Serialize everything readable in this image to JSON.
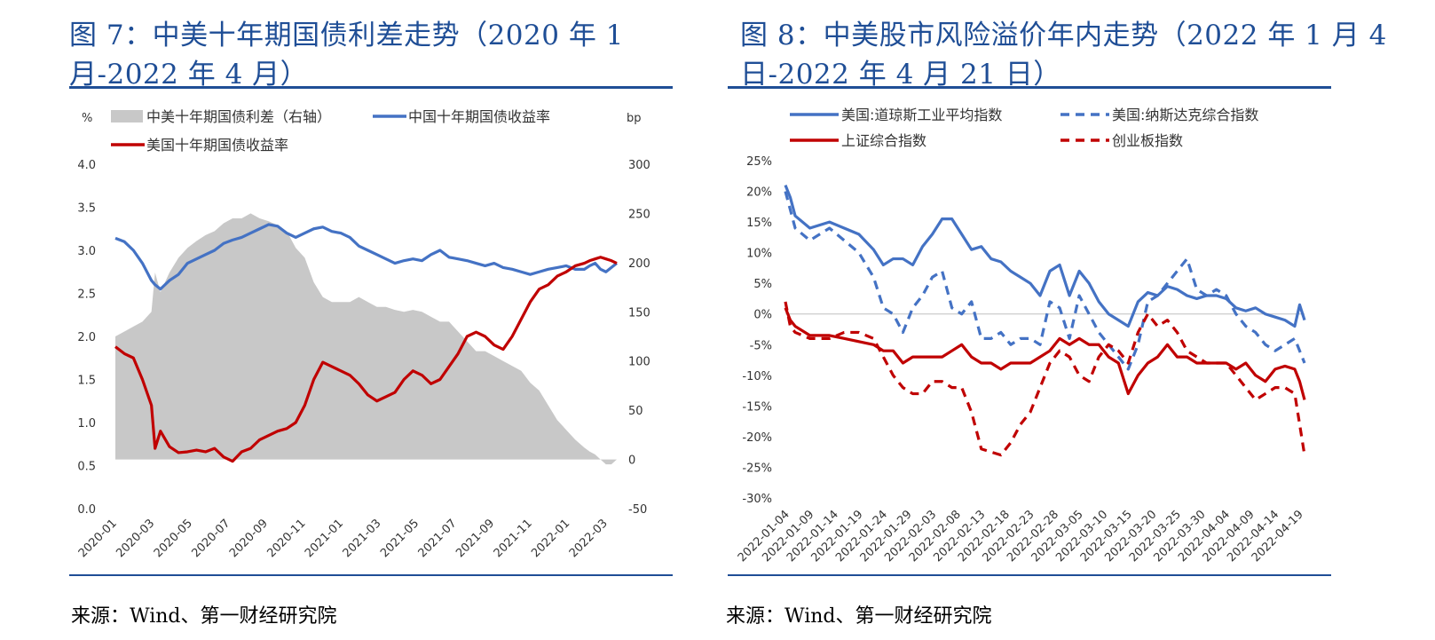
{
  "charts": [
    {
      "title": "图 7：中美十年期国债利差走势（2020 年 1 月-2022 年 4 月）",
      "source": "来源：Wind、第一财经研究院"
    },
    {
      "title": "图 8：中美股市风险溢价年内走势（2022 年 1 月 4 日-2022 年 4 月 21 日）",
      "source": "来源：Wind、第一财经研究院"
    }
  ],
  "chart_data": [
    {
      "type": "line",
      "title": "图 7：中美十年期国债利差走势（2020 年 1 月-2022 年 4 月）",
      "left_unit": "%",
      "right_unit": "bp",
      "ylim": [
        0.0,
        4.0
      ],
      "y2lim": [
        -50,
        300
      ],
      "y_ticks": [
        "4.0",
        "3.5",
        "3.0",
        "2.5",
        "2.0",
        "1.5",
        "1.0",
        "0.5",
        "0.0"
      ],
      "y2_ticks": [
        "300",
        "250",
        "200",
        "150",
        "100",
        "50",
        "0",
        "-50"
      ],
      "x_ticks": [
        "2020-01",
        "2020-03",
        "2020-05",
        "2020-07",
        "2020-09",
        "2020-11",
        "2021-01",
        "2021-03",
        "2021-05",
        "2021-07",
        "2021-09",
        "2021-11",
        "2022-01",
        "2022-03"
      ],
      "legend": [
        "中美十年期国债利差（右轴）",
        "中国十年期国债收益率",
        "美国十年期国债收益率"
      ],
      "x": [
        0,
        0.5,
        1,
        1.5,
        2,
        2.2,
        2.5,
        3,
        3.5,
        4,
        4.5,
        5,
        5.5,
        6,
        6.5,
        7,
        7.5,
        8,
        8.5,
        9,
        9.5,
        10,
        10.5,
        11,
        11.5,
        12,
        12.5,
        13,
        13.5,
        14,
        14.5,
        15,
        15.5,
        16,
        16.5,
        17,
        17.5,
        18,
        18.5,
        19,
        19.5,
        20,
        20.5,
        21,
        21.5,
        22,
        22.5,
        23,
        23.5,
        24,
        24.5,
        25,
        25.5,
        26,
        26.3,
        26.6,
        26.9,
        27.2,
        27.5,
        27.8
      ],
      "series": [
        {
          "name": "中国十年期国债收益率",
          "axis": "left",
          "color": "#4472c4",
          "values": [
            3.14,
            3.1,
            3.0,
            2.85,
            2.65,
            2.6,
            2.55,
            2.65,
            2.72,
            2.85,
            2.9,
            2.95,
            3.0,
            3.08,
            3.12,
            3.15,
            3.2,
            3.25,
            3.3,
            3.28,
            3.2,
            3.15,
            3.2,
            3.25,
            3.27,
            3.22,
            3.2,
            3.15,
            3.05,
            3.0,
            2.95,
            2.9,
            2.85,
            2.88,
            2.9,
            2.88,
            2.95,
            3.0,
            2.92,
            2.9,
            2.88,
            2.85,
            2.82,
            2.85,
            2.8,
            2.78,
            2.75,
            2.72,
            2.75,
            2.78,
            2.8,
            2.82,
            2.78,
            2.78,
            2.82,
            2.85,
            2.78,
            2.75,
            2.8,
            2.85
          ]
        },
        {
          "name": "美国十年期国债收益率",
          "axis": "left",
          "color": "#c00000",
          "values": [
            1.88,
            1.8,
            1.75,
            1.5,
            1.2,
            0.7,
            0.9,
            0.72,
            0.65,
            0.66,
            0.68,
            0.66,
            0.7,
            0.6,
            0.55,
            0.66,
            0.7,
            0.8,
            0.85,
            0.9,
            0.93,
            1.0,
            1.2,
            1.5,
            1.7,
            1.65,
            1.6,
            1.55,
            1.45,
            1.32,
            1.25,
            1.3,
            1.35,
            1.5,
            1.6,
            1.55,
            1.45,
            1.5,
            1.65,
            1.8,
            2.0,
            2.05,
            2.0,
            1.9,
            1.85,
            2.0,
            2.2,
            2.4,
            2.55,
            2.6,
            2.7,
            2.75,
            2.82,
            2.85,
            2.88,
            2.9,
            2.92,
            2.9,
            2.88,
            2.85
          ]
        },
        {
          "name": "中美十年期国债利差（右轴）",
          "axis": "right",
          "color": "#c8c8c8",
          "values": [
            125,
            130,
            135,
            140,
            150,
            190,
            170,
            190,
            205,
            215,
            222,
            228,
            232,
            240,
            245,
            245,
            250,
            245,
            242,
            238,
            232,
            215,
            205,
            180,
            165,
            160,
            160,
            160,
            165,
            160,
            155,
            155,
            152,
            150,
            152,
            150,
            145,
            140,
            140,
            130,
            120,
            110,
            110,
            105,
            100,
            95,
            90,
            78,
            70,
            55,
            40,
            30,
            20,
            12,
            8,
            5,
            0,
            -5,
            -5,
            0
          ]
        }
      ]
    },
    {
      "type": "line",
      "title": "图 8：中美股市风险溢价年内走势（2022 年 1 月 4 日-2022 年 4 月 21 日）",
      "ylim": [
        -30,
        25
      ],
      "y_ticks": [
        "25%",
        "20%",
        "15%",
        "10%",
        "5%",
        "0%",
        "-5%",
        "-10%",
        "-15%",
        "-20%",
        "-25%",
        "-30%"
      ],
      "x_ticks": [
        "2022-01-04",
        "2022-01-09",
        "2022-01-14",
        "2022-01-19",
        "2022-01-24",
        "2022-01-29",
        "2022-02-03",
        "2022-02-08",
        "2022-02-13",
        "2022-02-18",
        "2022-02-23",
        "2022-02-28",
        "2022-03-05",
        "2022-03-10",
        "2022-03-15",
        "2022-03-20",
        "2022-03-25",
        "2022-03-30",
        "2022-04-04",
        "2022-04-09",
        "2022-04-14",
        "2022-04-19"
      ],
      "legend": [
        "美国:道琼斯工业平均指数",
        "美国:纳斯达克综合指数",
        "上证综合指数",
        "创业板指数"
      ],
      "x": [
        0,
        1,
        2,
        5,
        9,
        12,
        15,
        18,
        20,
        22,
        24,
        26,
        28,
        30,
        32,
        34,
        36,
        38,
        40,
        42,
        44,
        46,
        48,
        50,
        52,
        54,
        56,
        58,
        60,
        62,
        64,
        66,
        68,
        70,
        72,
        74,
        76,
        78,
        80,
        82,
        84,
        86,
        88,
        90,
        92,
        94,
        96,
        98,
        100,
        102,
        104,
        105,
        106
      ],
      "series": [
        {
          "name": "美国:道琼斯工业平均指数",
          "color": "#4472c4",
          "dash": false,
          "values": [
            21,
            19,
            16,
            14,
            15,
            14,
            13,
            10.5,
            8,
            9,
            9,
            8,
            11,
            13,
            15.5,
            15.5,
            13,
            10.5,
            11,
            9,
            8.5,
            7,
            6,
            5,
            3,
            7,
            8,
            3,
            7,
            5,
            2,
            0,
            -1,
            -2,
            2,
            3.5,
            3,
            4.5,
            4,
            3,
            2.5,
            3,
            3,
            2.5,
            1,
            0.5,
            1,
            0,
            -0.5,
            -1,
            -2,
            1.5,
            -1
          ]
        },
        {
          "name": "美国:纳斯达克综合指数",
          "color": "#4472c4",
          "dash": true,
          "values": [
            20,
            17,
            14,
            12,
            14,
            12,
            10,
            6,
            1,
            0,
            -3,
            1,
            3,
            6,
            7,
            1,
            0,
            2,
            -4,
            -4,
            -3,
            -5,
            -4,
            -4,
            -5,
            2,
            1,
            -4,
            3,
            0,
            -3,
            -5,
            -7,
            -9,
            -5,
            2,
            3,
            5,
            7,
            9,
            4,
            3,
            4,
            3,
            0,
            -2,
            -3,
            -5,
            -6,
            -5,
            -4,
            -6,
            -8
          ]
        },
        {
          "name": "上证综合指数",
          "color": "#c00000",
          "dash": false,
          "values": [
            1,
            -1,
            -2,
            -3.5,
            -3.5,
            -4,
            -4.5,
            -5,
            -6,
            -6,
            -8,
            -7,
            -7,
            -7,
            -7,
            -6,
            -5,
            -7,
            -8,
            -8,
            -9,
            -8,
            -8,
            -8,
            -7,
            -6,
            -4,
            -5,
            -4,
            -5,
            -5,
            -7,
            -8,
            -13,
            -10,
            -8,
            -7,
            -5,
            -7,
            -7,
            -8,
            -8,
            -8,
            -8,
            -9,
            -8,
            -10,
            -11,
            -9,
            -8.5,
            -9,
            -11,
            -14
          ]
        },
        {
          "name": "创业板指数",
          "color": "#c00000",
          "dash": true,
          "values": [
            2,
            -2,
            -3,
            -4,
            -4,
            -3,
            -3,
            -4,
            -7,
            -10,
            -12,
            -13,
            -13,
            -11,
            -11,
            -12,
            -12,
            -16,
            -22,
            -22.5,
            -23,
            -21,
            -18,
            -16,
            -12,
            -8,
            -6,
            -7,
            -10,
            -11,
            -7,
            -5,
            -6,
            -8,
            -3,
            0,
            -2,
            -1,
            -3,
            -6,
            -7,
            -8,
            -8,
            -8,
            -10,
            -12,
            -14,
            -13,
            -12,
            -12,
            -13,
            -18,
            -23
          ]
        }
      ]
    }
  ]
}
